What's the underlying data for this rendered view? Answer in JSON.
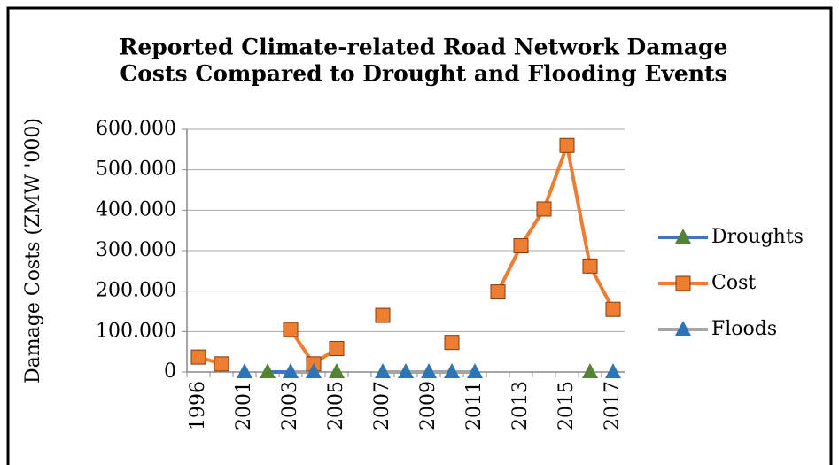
{
  "chart_data": {
    "type": "line",
    "title": [
      "Reported Climate-related Road Network Damage",
      "Costs Compared to Drought and Flooding Events"
    ],
    "y_label": "Damage Costs (ZMW '000)",
    "categories": [
      "1996",
      null,
      "2001",
      null,
      "2003",
      null,
      "2005",
      null,
      "2007",
      null,
      "2009",
      null,
      "2011",
      null,
      "2013",
      null,
      "2015",
      null,
      "2017"
    ],
    "ylim": [
      0,
      600
    ],
    "yticks": [
      0,
      {
        "value": 100,
        "label": "100.000"
      },
      {
        "value": 200,
        "label": "200.000"
      },
      {
        "value": 300,
        "label": "300.000"
      },
      {
        "value": 400,
        "label": "400.000"
      },
      {
        "value": 500,
        "label": "500.000"
      },
      {
        "value": 600,
        "label": "600.000"
      }
    ],
    "grid": true,
    "legend": "right",
    "series": [
      {
        "name": "Droughts",
        "color": "#4472c4",
        "marker": "triangle",
        "marker_color": "#548235",
        "values": [
          null,
          null,
          null,
          0,
          0,
          null,
          0,
          null,
          null,
          null,
          null,
          null,
          null,
          null,
          null,
          null,
          null,
          0,
          null
        ]
      },
      {
        "name": "Cost",
        "color": "#ed7d31",
        "marker": "square",
        "marker_color": "#ed7d31",
        "values": [
          37,
          20,
          null,
          null,
          105,
          20,
          58,
          null,
          140,
          null,
          null,
          73,
          null,
          198,
          312,
          403,
          560,
          262,
          155
        ]
      },
      {
        "name": "Floods",
        "color": "#a5a5a5",
        "marker": "triangle",
        "marker_color": "#2e75b6",
        "values": [
          null,
          null,
          0,
          null,
          0,
          0,
          null,
          null,
          0,
          0,
          0,
          0,
          0,
          null,
          null,
          null,
          null,
          null,
          0
        ]
      }
    ]
  }
}
